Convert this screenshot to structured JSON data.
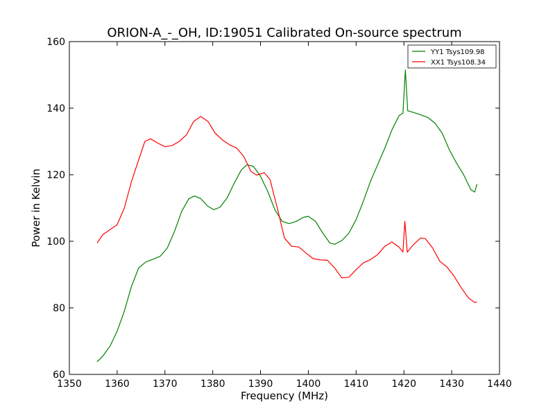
{
  "chart_data": {
    "type": "line",
    "title": "ORION-A_-_OH, ID:19051 Calibrated On-source spectrum",
    "xlabel": "Frequency (MHz)",
    "ylabel": "Power in Kelvin",
    "xlim": [
      1350,
      1440
    ],
    "ylim": [
      60,
      160
    ],
    "xticks": [
      "1350",
      "1360",
      "1370",
      "1380",
      "1390",
      "1400",
      "1410",
      "1420",
      "1430",
      "1440"
    ],
    "yticks": [
      "60",
      "80",
      "100",
      "120",
      "140",
      "160"
    ],
    "grid": false,
    "legend_position": "top-right",
    "series": [
      {
        "name": "YY1 Tsys109.98",
        "color": "#008000",
        "points": [
          [
            1355.8,
            63.8
          ],
          [
            1357,
            65.5
          ],
          [
            1358.5,
            68.5
          ],
          [
            1360,
            73
          ],
          [
            1361.5,
            79
          ],
          [
            1363,
            86.5
          ],
          [
            1364.5,
            92
          ],
          [
            1366,
            93.8
          ],
          [
            1367.5,
            94.6
          ],
          [
            1369,
            95.5
          ],
          [
            1370.5,
            98
          ],
          [
            1372,
            103
          ],
          [
            1373.5,
            109
          ],
          [
            1375,
            112.8
          ],
          [
            1376.2,
            113.6
          ],
          [
            1377.5,
            112.8
          ],
          [
            1379,
            110.5
          ],
          [
            1380.2,
            109.5
          ],
          [
            1381.5,
            110.2
          ],
          [
            1383,
            113
          ],
          [
            1384.5,
            117.5
          ],
          [
            1386,
            121.5
          ],
          [
            1387.2,
            123
          ],
          [
            1388.5,
            122.5
          ],
          [
            1390,
            119.5
          ],
          [
            1391.5,
            115
          ],
          [
            1393,
            109.5
          ],
          [
            1394.5,
            106
          ],
          [
            1396,
            105.3
          ],
          [
            1397.5,
            106
          ],
          [
            1399,
            107.2
          ],
          [
            1400,
            107.5
          ],
          [
            1401.5,
            106
          ],
          [
            1403,
            102.5
          ],
          [
            1404.5,
            99.5
          ],
          [
            1405.5,
            99.1
          ],
          [
            1407,
            100.2
          ],
          [
            1408.5,
            102.5
          ],
          [
            1410,
            106.5
          ],
          [
            1411.5,
            112
          ],
          [
            1413,
            118
          ],
          [
            1414.5,
            123
          ],
          [
            1416,
            128
          ],
          [
            1417.5,
            133.5
          ],
          [
            1419,
            137.8
          ],
          [
            1419.8,
            138.5
          ],
          [
            1420.3,
            151.5
          ],
          [
            1420.8,
            139.2
          ],
          [
            1422,
            138.7
          ],
          [
            1423.5,
            138
          ],
          [
            1425,
            137.2
          ],
          [
            1426.5,
            135.5
          ],
          [
            1428,
            132.5
          ],
          [
            1429.5,
            127.5
          ],
          [
            1431,
            123.5
          ],
          [
            1432.5,
            120
          ],
          [
            1434,
            115.5
          ],
          [
            1434.8,
            114.8
          ],
          [
            1435.3,
            117.2
          ]
        ]
      },
      {
        "name": "XX1 Tsys108.34",
        "color": "#ff0000",
        "points": [
          [
            1355.8,
            99.5
          ],
          [
            1357,
            102
          ],
          [
            1358.5,
            103.5
          ],
          [
            1360,
            105
          ],
          [
            1361.5,
            110
          ],
          [
            1363,
            118
          ],
          [
            1364.5,
            124.5
          ],
          [
            1365.8,
            130
          ],
          [
            1367,
            130.8
          ],
          [
            1368.5,
            129.5
          ],
          [
            1370,
            128.4
          ],
          [
            1371.5,
            128.8
          ],
          [
            1373,
            130
          ],
          [
            1374.5,
            132
          ],
          [
            1376,
            136
          ],
          [
            1377.5,
            137.5
          ],
          [
            1379,
            136
          ],
          [
            1380.5,
            132.5
          ],
          [
            1382,
            130.5
          ],
          [
            1383.5,
            129
          ],
          [
            1385,
            128
          ],
          [
            1386.5,
            125.5
          ],
          [
            1388,
            121
          ],
          [
            1389.2,
            119.9
          ],
          [
            1390.8,
            120.6
          ],
          [
            1392,
            118.5
          ],
          [
            1393.5,
            110
          ],
          [
            1395,
            101
          ],
          [
            1396.5,
            98.5
          ],
          [
            1398,
            98.3
          ],
          [
            1399.5,
            96.5
          ],
          [
            1401,
            94.8
          ],
          [
            1402.5,
            94.4
          ],
          [
            1404,
            94.3
          ],
          [
            1405.5,
            92
          ],
          [
            1407,
            89
          ],
          [
            1408.5,
            89.2
          ],
          [
            1410,
            91.5
          ],
          [
            1411.5,
            93.5
          ],
          [
            1413,
            94.5
          ],
          [
            1414.5,
            96
          ],
          [
            1416,
            98.5
          ],
          [
            1417.5,
            99.8
          ],
          [
            1419,
            98.2
          ],
          [
            1419.8,
            96.8
          ],
          [
            1420.2,
            106
          ],
          [
            1420.7,
            96.7
          ],
          [
            1422,
            99
          ],
          [
            1423.5,
            101
          ],
          [
            1424.5,
            100.8
          ],
          [
            1426,
            98
          ],
          [
            1427.5,
            94
          ],
          [
            1429,
            92.3
          ],
          [
            1430.5,
            89.5
          ],
          [
            1432,
            86
          ],
          [
            1433.5,
            83
          ],
          [
            1434.8,
            81.6
          ],
          [
            1435.3,
            81.8
          ]
        ]
      }
    ]
  }
}
